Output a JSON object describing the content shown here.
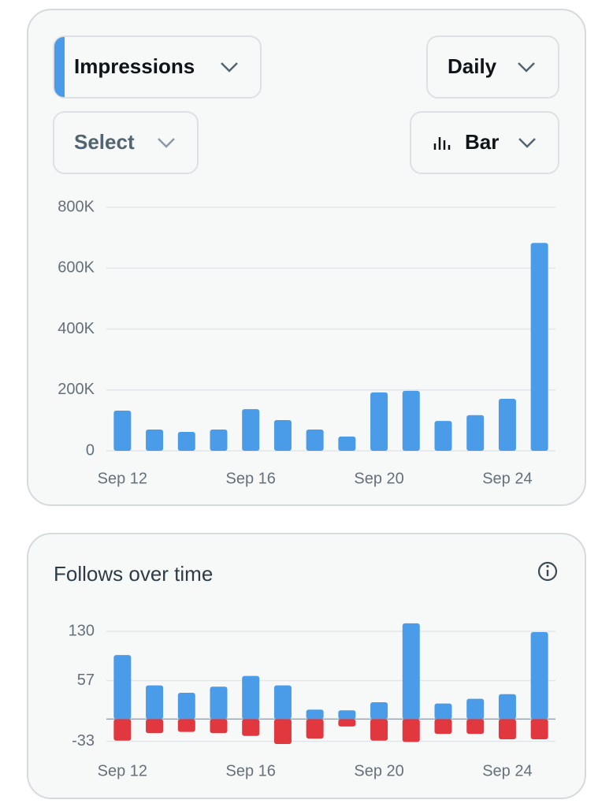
{
  "controls": {
    "metric": "Impressions",
    "interval": "Daily",
    "compare": "Select",
    "chart_style": "Bar"
  },
  "chart_data": [
    {
      "type": "bar",
      "categories": [
        "Sep 12",
        null,
        null,
        null,
        "Sep 16",
        null,
        null,
        null,
        "Sep 20",
        null,
        null,
        null,
        "Sep 24",
        null
      ],
      "series": [
        {
          "color": "#4a9be8",
          "values": [
            132000,
            70000,
            62000,
            70000,
            137000,
            101000,
            70000,
            47000,
            192000,
            197000,
            98000,
            117000,
            171000,
            683000
          ]
        }
      ],
      "ylim": [
        0,
        800000
      ],
      "yticks": [
        0,
        {
          "value": 200000,
          "label": "200K"
        },
        {
          "value": 400000,
          "label": "400K"
        },
        {
          "value": 600000,
          "label": "600K"
        },
        {
          "value": 800000,
          "label": "800K"
        }
      ],
      "grid": true
    },
    {
      "type": "bar",
      "title": "Follows over time",
      "categories": [
        "Sep 12",
        null,
        null,
        null,
        "Sep 16",
        null,
        null,
        null,
        "Sep 20",
        null,
        null,
        null,
        "Sep 24",
        null
      ],
      "series": [
        {
          "color": "#4a9be8",
          "values": [
            95,
            50,
            39,
            48,
            64,
            50,
            14,
            13,
            25,
            142,
            23,
            30,
            37,
            129
          ]
        },
        {
          "color": "#e0383e",
          "values": [
            -32,
            -21,
            -19,
            -21,
            -25,
            -37,
            -29,
            -11,
            -32,
            -34,
            -22,
            -22,
            -30,
            -30
          ]
        }
      ],
      "ylim": [
        -37,
        143
      ],
      "yticks": [
        -33,
        57,
        130
      ],
      "grid": true
    }
  ]
}
